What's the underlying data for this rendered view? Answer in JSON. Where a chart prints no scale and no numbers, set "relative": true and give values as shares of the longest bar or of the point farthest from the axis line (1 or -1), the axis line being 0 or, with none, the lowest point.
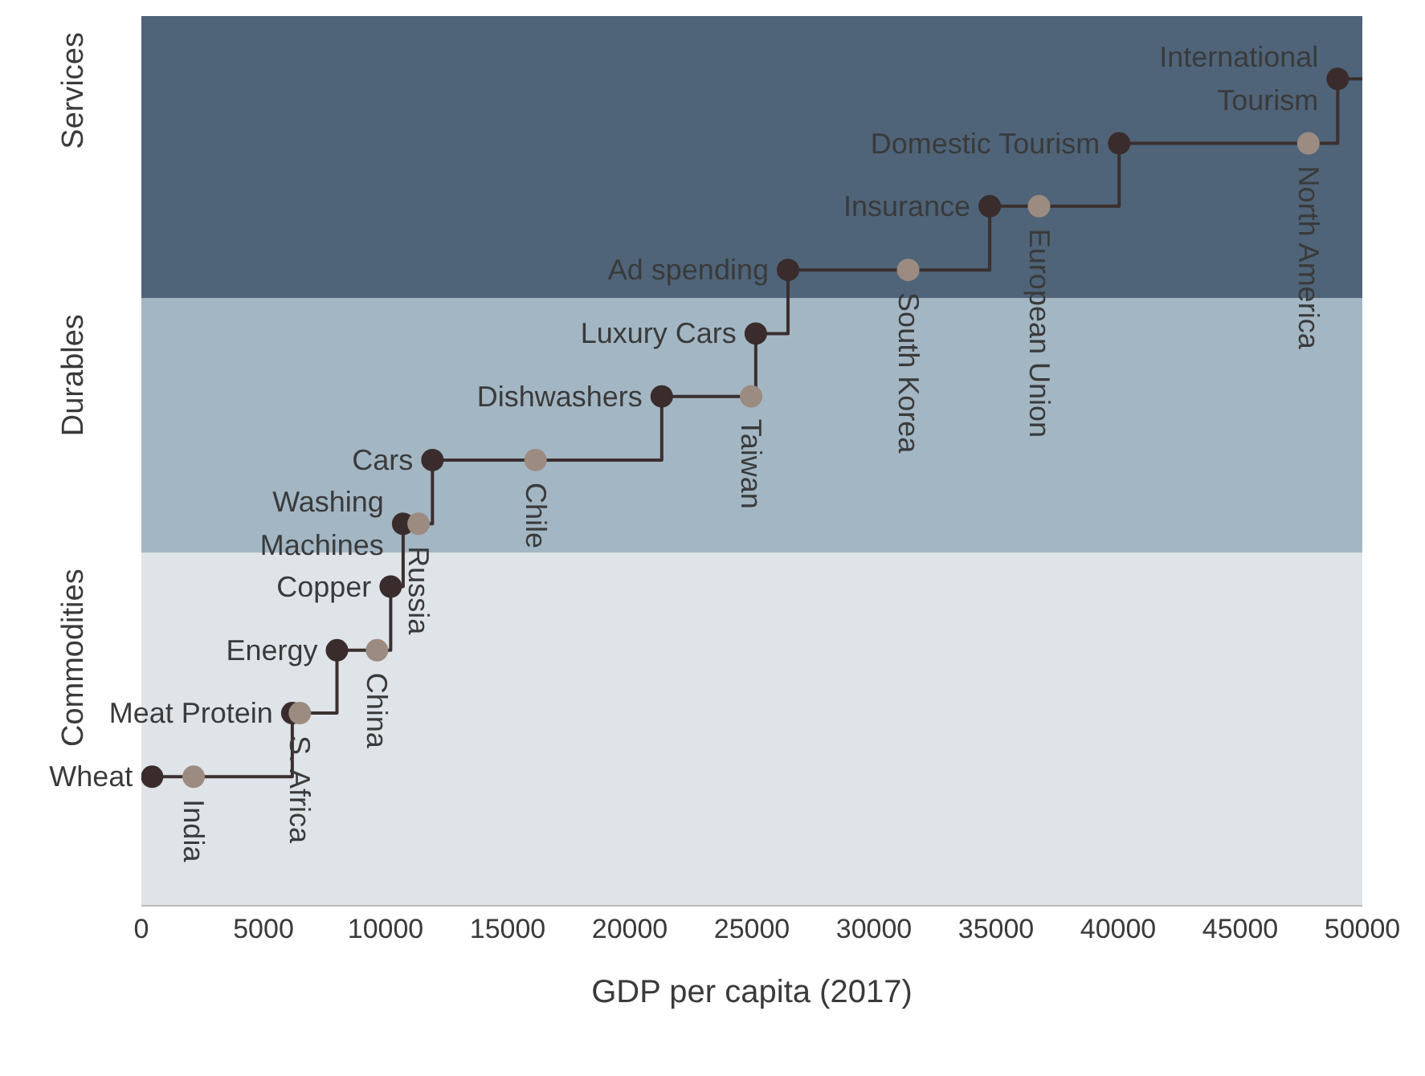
{
  "chart_data": {
    "type": "step",
    "xlabel": "GDP per capita (2017)",
    "relative": true,
    "xlim": [
      0,
      50000
    ],
    "xticks": [
      0,
      5000,
      10000,
      15000,
      20000,
      25000,
      30000,
      35000,
      40000,
      45000,
      50000
    ],
    "grid": false,
    "legend": false,
    "marker": "circle",
    "tick_labels": "x",
    "bands": [
      {
        "axis": "y",
        "from": 0,
        "to": 0.427,
        "label": "Commodities",
        "color": "#dfe4e9"
      },
      {
        "axis": "y",
        "from": 0.427,
        "to": 0.735,
        "label": "Durables",
        "color": "#a3b6c3"
      },
      {
        "axis": "y",
        "from": 0.735,
        "to": 1.076,
        "label": "Services",
        "color": "#4f6479"
      }
    ],
    "series": [
      {
        "marker": "none",
        "color": "#3b2f2f",
        "x": [
          440,
          6180,
          8010,
          10210,
          10720,
          11920,
          21310,
          25160,
          26480,
          34740,
          40040,
          48990,
          50000
        ],
        "values": [
          0.156,
          0.233,
          0.309,
          0.386,
          0.462,
          0.539,
          0.616,
          0.692,
          0.769,
          0.846,
          0.922,
          1,
          1
        ]
      },
      {
        "type": "scatter",
        "color": "#3a2c2c",
        "x": [
          440,
          6180,
          8010,
          10210,
          10720,
          11920,
          21310,
          25160,
          26480,
          34740,
          40040,
          48990
        ],
        "values": [
          0.156,
          0.233,
          0.309,
          0.386,
          0.462,
          0.539,
          0.616,
          0.692,
          0.769,
          0.846,
          0.922,
          1
        ]
      },
      {
        "type": "scatter",
        "color": "#9b8b80",
        "x": [
          2140,
          6490,
          9650,
          11350,
          16140,
          24970,
          31400,
          36760,
          47790
        ],
        "values": [
          0.156,
          0.233,
          0.309,
          0.462,
          0.539,
          0.616,
          0.769,
          0.846,
          0.922
        ]
      }
    ],
    "annotations": [
      {
        "text": "Wheat",
        "x": 440,
        "y": 0.156
      },
      {
        "text": "Meat Protein",
        "x": 6180,
        "y": 0.233
      },
      {
        "text": "Energy",
        "x": 8010,
        "y": 0.309
      },
      {
        "text": "Copper",
        "x": 10210,
        "y": 0.386
      },
      {
        "text": "Washing\nMachines",
        "x": 10720,
        "y": 0.462
      },
      {
        "text": "Cars",
        "x": 11920,
        "y": 0.539
      },
      {
        "text": "Dishwashers",
        "x": 21310,
        "y": 0.616
      },
      {
        "text": "Luxury Cars",
        "x": 25160,
        "y": 0.692
      },
      {
        "text": "Ad spending",
        "x": 26480,
        "y": 0.769
      },
      {
        "text": "Insurance",
        "x": 34740,
        "y": 0.846
      },
      {
        "text": "Domestic Tourism",
        "x": 40040,
        "y": 0.922
      },
      {
        "text": "International\nTourism",
        "x": 48990,
        "y": 1
      },
      {
        "text": "India",
        "x": 2140,
        "y": 0.156
      },
      {
        "text": "S. Africa",
        "x": 6490,
        "y": 0.233
      },
      {
        "text": "China",
        "x": 9650,
        "y": 0.309
      },
      {
        "text": "Russia",
        "x": 11350,
        "y": 0.462
      },
      {
        "text": "Chile",
        "x": 16140,
        "y": 0.539
      },
      {
        "text": "Taiwan",
        "x": 24970,
        "y": 0.616
      },
      {
        "text": "South Korea",
        "x": 31400,
        "y": 0.769
      },
      {
        "text": "European Union",
        "x": 36760,
        "y": 0.846
      },
      {
        "text": "North America",
        "x": 47790,
        "y": 0.922
      }
    ]
  }
}
